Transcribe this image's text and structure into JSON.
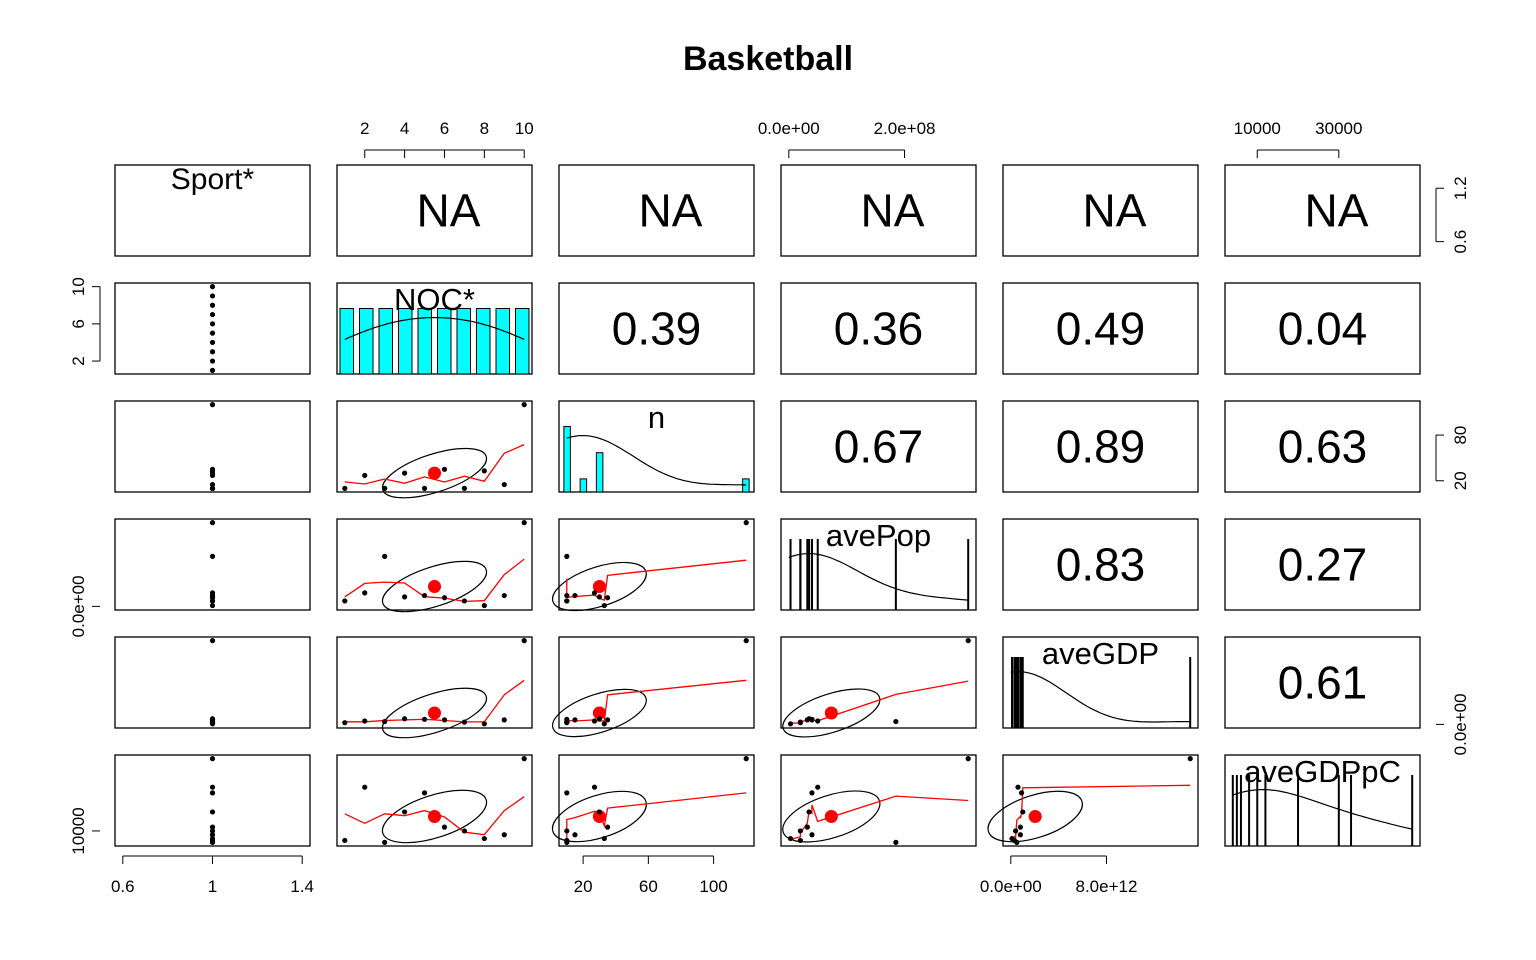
{
  "title": "Basketball",
  "chart_data": {
    "type": "scatter",
    "title": "Basketball",
    "variables": [
      "Sport*",
      "NOC*",
      "n",
      "avePop",
      "aveGDP",
      "aveGDPpC"
    ],
    "correlations": [
      {
        "row": 0,
        "col": 1,
        "text": "NA"
      },
      {
        "row": 0,
        "col": 2,
        "text": "NA"
      },
      {
        "row": 0,
        "col": 3,
        "text": "NA"
      },
      {
        "row": 0,
        "col": 4,
        "text": "NA"
      },
      {
        "row": 0,
        "col": 5,
        "text": "NA"
      },
      {
        "row": 1,
        "col": 2,
        "text": "0.39"
      },
      {
        "row": 1,
        "col": 3,
        "text": "0.36"
      },
      {
        "row": 1,
        "col": 4,
        "text": "0.49"
      },
      {
        "row": 1,
        "col": 5,
        "text": "0.04"
      },
      {
        "row": 2,
        "col": 3,
        "text": "0.67"
      },
      {
        "row": 2,
        "col": 4,
        "text": "0.89"
      },
      {
        "row": 2,
        "col": 5,
        "text": "0.63"
      },
      {
        "row": 3,
        "col": 4,
        "text": "0.83"
      },
      {
        "row": 3,
        "col": 5,
        "text": "0.27"
      },
      {
        "row": 4,
        "col": 5,
        "text": "0.61"
      }
    ],
    "data": {
      "Sport": [
        1,
        1,
        1,
        1,
        1,
        1,
        1,
        1,
        1,
        1
      ],
      "NOC": [
        1,
        2,
        3,
        4,
        5,
        6,
        7,
        8,
        9,
        10
      ],
      "n": [
        10,
        27,
        10,
        30,
        10,
        35,
        10,
        33,
        15,
        120
      ],
      "avePop": [
        20000000,
        50000000,
        185000000,
        35000000,
        40000000,
        32000000,
        20000000,
        3000000,
        40000000,
        310000000
      ],
      "aveGDP": [
        300000000000,
        600000000000,
        500000000000,
        1000000000000,
        900000000000,
        800000000000,
        400000000000,
        100000000000,
        800000000000,
        15000000000000
      ],
      "aveGDPpC": [
        5000,
        33000,
        4000,
        20000,
        30000,
        12000,
        10000,
        6000,
        8000,
        48000
      ]
    },
    "axes": {
      "top": [
        {
          "col": 1,
          "ticks": [
            2,
            4,
            6,
            8,
            10
          ]
        },
        {
          "col": 3,
          "ticks": [
            "0.0e+00",
            "2.0e+08"
          ]
        },
        {
          "col": 5,
          "ticks": [
            10000,
            30000
          ]
        }
      ],
      "bottom": [
        {
          "col": 0,
          "ticks": [
            0.6,
            1.0,
            1.4
          ]
        },
        {
          "col": 2,
          "ticks": [
            20,
            60,
            100
          ]
        },
        {
          "col": 4,
          "ticks": [
            "0.0e+00",
            "8.0e+12"
          ]
        }
      ],
      "left": [
        {
          "row": 1,
          "ticks": [
            2,
            6,
            10
          ]
        },
        {
          "row": 3,
          "ticks": [
            "0.0e+00"
          ]
        },
        {
          "row": 5,
          "ticks": [
            10000
          ]
        }
      ],
      "right": [
        {
          "row": 0,
          "ticks": [
            0.6,
            1.2
          ]
        },
        {
          "row": 2,
          "ticks": [
            20,
            80
          ]
        },
        {
          "row": 4,
          "ticks": [
            "0.0e+00"
          ]
        }
      ]
    },
    "colors": {
      "histogram_fill": "#00ffff",
      "smoother": "#ff0000",
      "mean_point": "#ff0000",
      "points": "#000000"
    }
  }
}
